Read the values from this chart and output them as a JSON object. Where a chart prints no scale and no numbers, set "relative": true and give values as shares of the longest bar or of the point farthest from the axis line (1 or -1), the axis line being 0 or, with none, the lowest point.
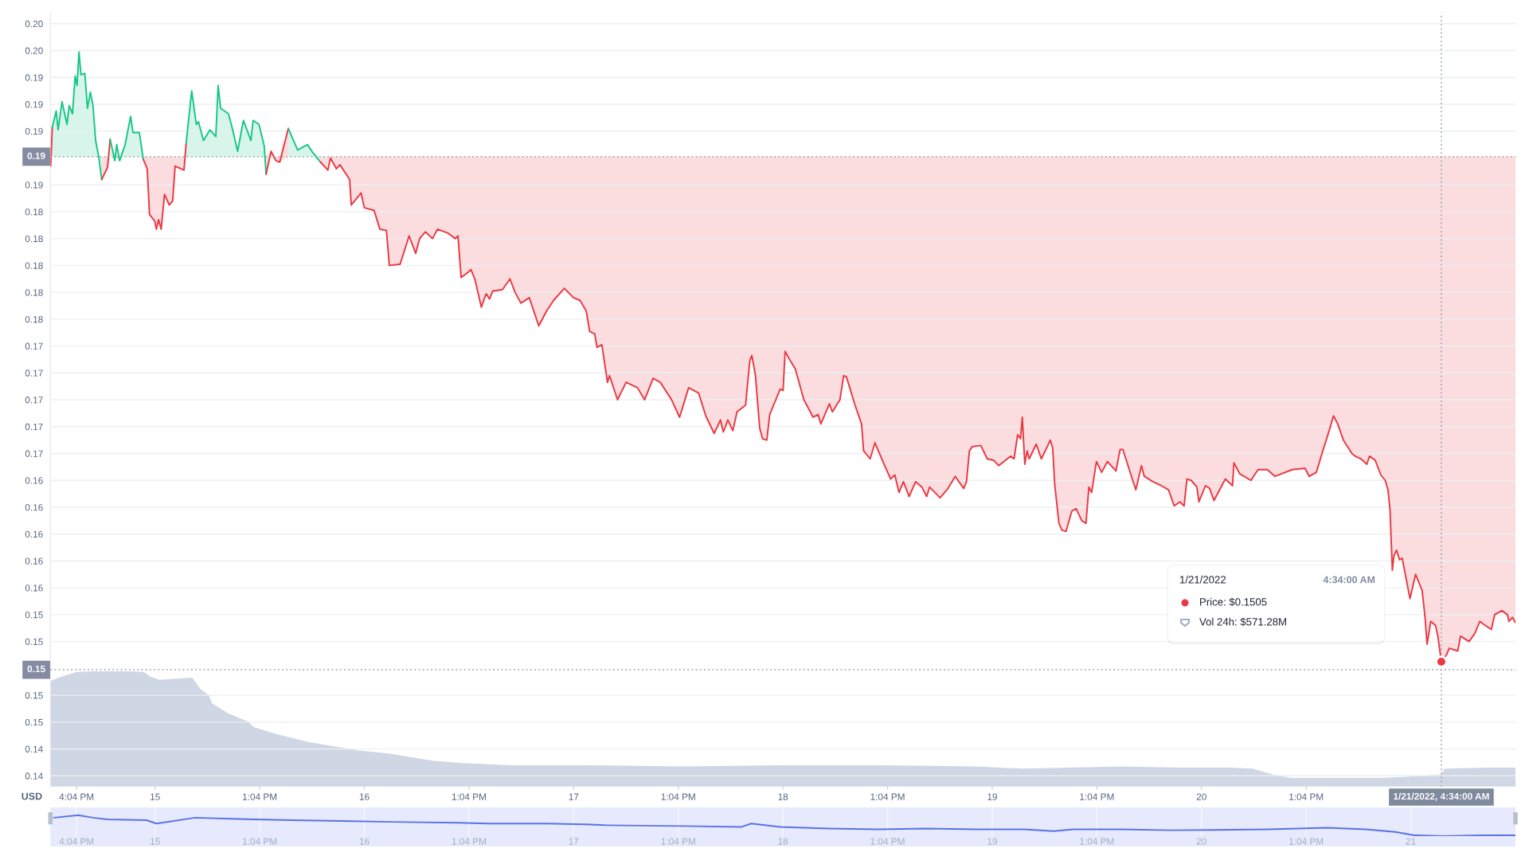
{
  "chart_data": [
    {
      "type": "line",
      "series": [
        {
          "color": "#ea3943",
          "x": [
            "2022-01-14T13:06",
            "2022-01-14T13:17"
          ],
          "values": [
            0.1874,
            0.1903
          ],
          "lower": [
            0.1874,
            0.1881
          ],
          "upper": [
            0.1881,
            0.1903
          ]
        },
        {
          "color": "#16c784",
          "x": [
            "2022-01-14T13:17",
            "2022-01-14T13:44",
            "2022-01-14T13:57",
            "2022-01-14T14:24",
            "2022-01-14T14:58",
            "2022-01-14T15:13",
            "2022-01-14T15:36",
            "2022-01-14T15:54",
            "2022-01-14T16:07",
            "2022-01-14T16:21",
            "2022-01-14T16:34",
            "2022-01-14T17:01",
            "2022-01-14T17:19",
            "2022-01-14T17:39",
            "2022-01-14T17:57",
            "2022-01-14T18:15",
            "2022-01-14T18:35",
            "2022-01-14T18:57"
          ],
          "values": [
            0.1903,
            0.1915,
            0.1901,
            0.1922,
            0.1905,
            0.1919,
            0.1913,
            0.1941,
            0.1934,
            0.1959,
            0.1942,
            0.1943,
            0.1917,
            0.1929,
            0.1919,
            0.1893,
            0.1882,
            0.1864
          ],
          "lower": [
            0.1881,
            0.1881,
            0.1881,
            0.1881,
            0.1881,
            0.1881,
            0.1881,
            0.1881,
            0.1881,
            0.1881,
            0.1881,
            0.1881,
            0.1881,
            0.1881,
            0.1881,
            0.1881,
            0.1881,
            0.1864
          ],
          "upper": [
            0.1903,
            0.1915,
            0.1901,
            0.1922,
            0.1905,
            0.1919,
            0.1913,
            0.1941,
            0.1934,
            0.1959,
            0.1942,
            0.1943,
            0.1917,
            0.1929,
            0.1919,
            0.1893,
            0.1882,
            0.1881
          ]
        },
        {
          "color": "#ea3943",
          "x": [
            "2022-01-14T18:57",
            "2022-01-14T19:37",
            "2022-01-14T19:55"
          ],
          "values": [
            0.1864,
            0.1873,
            0.1894
          ],
          "lower": [
            0.1864,
            0.1873,
            0.1881
          ],
          "upper": [
            0.1881,
            0.1881,
            0.1894
          ]
        },
        {
          "color": "#16c784",
          "x": [
            "2022-01-14T19:55",
            "2022-01-14T20:27",
            "2022-01-14T20:40",
            "2022-01-14T21:00",
            "2022-01-14T21:38",
            "2022-01-14T22:16",
            "2022-01-14T22:32",
            "2022-01-14T23:16",
            "2022-01-14T23:43"
          ],
          "values": [
            0.1894,
            0.1878,
            0.189,
            0.1878,
            0.189,
            0.1911,
            0.1899,
            0.1899,
            0.1879
          ],
          "lower": [
            0.1881,
            0.1878,
            0.1881,
            0.1878,
            0.1881,
            0.1881,
            0.1881,
            0.1881,
            0.1879
          ],
          "upper": [
            0.1894,
            0.1881,
            0.189,
            0.1881,
            0.189,
            0.1911,
            0.1899,
            0.1899,
            0.1881
          ]
        },
        {
          "color": "#ea3943",
          "x": [
            "2022-01-14T23:43",
            "2022-01-15T00:10",
            "2022-01-15T00:26",
            "2022-01-15T01:02",
            "2022-01-15T01:13",
            "2022-01-15T01:28",
            "2022-01-15T01:46",
            "2022-01-15T02:09",
            "2022-01-15T02:42",
            "2022-01-15T03:05",
            "2022-01-15T03:22",
            "2022-01-15T04:23",
            "2022-01-15T04:38"
          ],
          "values": [
            0.1879,
            0.1872,
            0.1838,
            0.1833,
            0.1827,
            0.1834,
            0.1827,
            0.1853,
            0.1845,
            0.1848,
            0.1874,
            0.1871,
            0.1891
          ],
          "lower": [
            0.1879,
            0.1872,
            0.1838,
            0.1833,
            0.1827,
            0.1834,
            0.1827,
            0.1853,
            0.1845,
            0.1848,
            0.1874,
            0.1871,
            0.1881
          ],
          "upper": [
            0.1881,
            0.1881,
            0.1881,
            0.1881,
            0.1881,
            0.1881,
            0.1881,
            0.1881,
            0.1881,
            0.1881,
            0.1881,
            0.1881,
            0.1891
          ]
        },
        {
          "color": "#16c784",
          "x": [
            "2022-01-15T04:38",
            "2022-01-15T05:16",
            "2022-01-15T05:48",
            "2022-01-15T06:03",
            "2022-01-15T06:37",
            "2022-01-15T07:22",
            "2022-01-15T08:02",
            "2022-01-15T08:18",
            "2022-01-15T08:35",
            "2022-01-15T09:29",
            "2022-01-15T09:58",
            "2022-01-15T10:32",
            "2022-01-15T11:12",
            "2022-01-15T11:43",
            "2022-01-15T12:03",
            "2022-01-15T12:19",
            "2022-01-15T12:59",
            "2022-01-15T13:35",
            "2022-01-15T13:48"
          ],
          "values": [
            0.1891,
            0.193,
            0.1905,
            0.1907,
            0.1893,
            0.1901,
            0.1896,
            0.1934,
            0.1917,
            0.1913,
            0.1901,
            0.1885,
            0.1908,
            0.1899,
            0.1893,
            0.1908,
            0.1905,
            0.1889,
            0.1868
          ],
          "lower": [
            0.1881,
            0.1881,
            0.1881,
            0.1881,
            0.1881,
            0.1881,
            0.1881,
            0.1881,
            0.1881,
            0.1881,
            0.1881,
            0.1881,
            0.1881,
            0.1881,
            0.1881,
            0.1881,
            0.1881,
            0.1881,
            0.1868
          ],
          "upper": [
            0.1891,
            0.193,
            0.1905,
            0.1907,
            0.1893,
            0.1901,
            0.1896,
            0.1934,
            0.1917,
            0.1913,
            0.1901,
            0.1885,
            0.1908,
            0.1899,
            0.1893,
            0.1908,
            0.1905,
            0.1889,
            0.1881
          ]
        },
        {
          "color": "#ea3943",
          "x": [
            "2022-01-15T13:48",
            "2022-01-15T14:22",
            "2022-01-15T14:56",
            "2022-01-15T15:22",
            "2022-01-15T16:21"
          ],
          "values": [
            0.1868,
            0.1885,
            0.1878,
            0.1877,
            0.1902
          ],
          "lower": [
            0.1868,
            0.1881,
            0.1878,
            0.1877,
            0.1881
          ],
          "upper": [
            0.1881,
            0.1885,
            0.1881,
            0.1881,
            0.1902
          ]
        },
        {
          "color": "#16c784",
          "x": [
            "2022-01-15T16:21",
            "2022-01-15T17:25",
            "2022-01-15T18:32",
            "2022-01-15T19:10",
            "2022-01-15T20:02"
          ],
          "values": [
            0.1902,
            0.1886,
            0.189,
            0.1884,
            0.1877
          ],
          "lower": [
            0.1881,
            0.1881,
            0.1881,
            0.1881,
            0.1877
          ],
          "upper": [
            0.1902,
            0.1886,
            0.189,
            0.1884,
            0.1881
          ]
        },
        {
          "color": "#ea3943",
          "x": [
            "2022-01-15T20:02",
            "2022-01-15T20:53",
            "2022-01-15T21:11",
            "2022-01-15T21:52",
            "2022-01-15T22:16",
            "2022-01-15T23:23",
            "2022-01-15T23:34",
            "2022-01-16T00:19",
            "2022-01-16T00:41",
            "2022-01-16T01:04",
            "2022-01-16T02:11",
            "2022-01-16T02:51",
            "2022-01-16T03:36",
            "2022-01-16T03:56",
            "2022-01-16T05:10",
            "2022-01-16T06:12",
            "2022-01-16T06:57",
            "2022-01-16T07:24",
            "2022-01-16T08:04",
            "2022-01-16T08:53",
            "2022-01-16T09:27",
            "2022-01-16T10:41",
            "2022-01-16T11:30",
            "2022-01-16T11:48",
            "2022-01-16T12:10",
            "2022-01-16T12:59",
            "2022-01-16T13:17",
            "2022-01-16T13:44",
            "2022-01-16T14:29",
            "2022-01-16T15:02",
            "2022-01-16T15:25",
            "2022-01-16T15:47",
            "2022-01-16T16:54",
            "2022-01-16T17:46",
            "2022-01-16T18:21",
            "2022-01-16T19:01",
            "2022-01-16T19:59",
            "2022-01-16T21:04",
            "2022-01-16T21:57",
            "2022-01-16T22:46",
            "2022-01-17T00:00",
            "2022-01-17T01:03",
            "2022-01-17T01:48",
            "2022-01-17T02:31",
            "2022-01-17T02:54",
            "2022-01-17T03:29",
            "2022-01-17T03:45",
            "2022-01-17T04:18",
            "2022-01-17T04:57",
            "2022-01-17T05:11",
            "2022-01-17T06:06",
            "2022-01-17T07:05",
            "2022-01-17T08:23",
            "2022-01-17T09:12",
            "2022-01-17T10:11",
            "2022-01-17T11:00",
            "2022-01-17T12:18",
            "2022-01-17T13:13",
            "2022-01-17T14:15",
            "2022-01-17T15:24",
            "2022-01-17T16:13",
            "2022-01-17T17:11",
            "2022-01-17T17:54",
            "2022-01-17T18:14",
            "2022-01-17T18:45",
            "2022-01-17T19:19",
            "2022-01-17T19:48",
            "2022-01-17T20:47",
            "2022-01-17T21:16",
            "2022-01-17T21:30",
            "2022-01-17T21:55",
            "2022-01-17T22:24",
            "2022-01-17T22:44",
            "2022-01-17T23:13",
            "2022-01-17T23:33",
            "2022-01-18T00:45",
            "2022-01-18T01:05",
            "2022-01-18T01:19",
            "2022-01-18T01:44",
            "2022-01-18T02:29",
            "2022-01-18T03:28",
            "2022-01-18T04:32",
            "2022-01-18T05:06",
            "2022-01-18T05:25",
            "2022-01-18T06:24",
            "2022-01-18T06:44",
            "2022-01-18T07:36",
            "2022-01-18T08:02",
            "2022-01-18T08:21",
            "2022-01-18T09:20",
            "2022-01-18T10:05",
            "2022-01-18T10:19",
            "2022-01-18T11:04",
            "2022-01-18T11:37",
            "2022-01-18T12:36",
            "2022-01-18T13:25",
            "2022-01-18T13:54",
            "2022-01-18T14:23",
            "2022-01-18T14:53",
            "2022-01-18T15:32",
            "2022-01-18T16:17",
            "2022-01-18T17:00",
            "2022-01-18T17:33",
            "2022-01-18T17:53",
            "2022-01-18T19:05",
            "2022-01-18T20:00",
            "2022-01-18T20:49",
            "2022-01-18T21:48",
            "2022-01-18T22:07",
            "2022-01-18T22:27",
            "2022-01-18T22:46",
            "2022-01-18T23:45",
            "2022-01-19T00:30",
            "2022-01-19T01:13",
            "2022-01-19T01:48",
            "2022-01-19T03:10",
            "2022-01-19T03:34",
            "2022-01-19T03:59",
            "2022-01-19T04:19",
            "2022-01-19T04:31",
            "2022-01-19T04:48",
            "2022-01-19T05:04",
            "2022-01-19T05:18",
            "2022-01-19T06:07",
            "2022-01-19T06:42",
            "2022-01-19T07:44",
            "2022-01-19T08:00",
            "2022-01-19T08:14",
            "2022-01-19T08:43",
            "2022-01-19T09:03",
            "2022-01-19T09:32",
            "2022-01-19T10:11",
            "2022-01-19T10:41",
            "2022-01-19T11:20",
            "2022-01-19T11:49",
            "2022-01-19T12:09",
            "2022-01-19T12:28",
            "2022-01-19T13:01",
            "2022-01-19T13:37",
            "2022-01-19T14:16",
            "2022-01-19T15:15",
            "2022-01-19T15:44",
            "2022-01-19T16:03",
            "2022-01-19T17:02",
            "2022-01-19T17:32",
            "2022-01-19T18:11",
            "2022-01-19T18:30",
            "2022-01-19T19:29",
            "2022-01-19T20:28",
            "2022-01-19T21:17",
            "2022-01-19T21:56",
            "2022-01-19T22:35",
            "2022-01-19T23:04",
            "2022-01-19T23:24",
            "2022-01-19T23:53",
            "2022-01-20T00:32",
            "2022-01-20T00:46",
            "2022-01-20T01:31",
            "2022-01-20T02:00",
            "2022-01-20T02:30",
            "2022-01-20T03:48",
            "2022-01-20T04:37",
            "2022-01-20T04:47",
            "2022-01-20T05:26",
            "2022-01-20T06:44",
            "2022-01-20T07:33",
            "2022-01-20T08:36",
            "2022-01-20T09:30",
            "2022-01-20T11:28",
            "2022-01-20T12:56",
            "2022-01-20T13:25",
            "2022-01-20T14:14",
            "2022-01-20T14:53",
            "2022-01-20T15:42",
            "2022-01-20T16:12",
            "2022-01-20T16:41",
            "2022-01-20T17:20",
            "2022-01-20T18:19",
            "2022-01-20T18:42",
            "2022-01-20T19:21",
            "2022-01-20T20:01",
            "2022-01-20T20:20",
            "2022-01-20T20:59",
            "2022-01-20T21:38",
            "2022-01-20T22:08",
            "2022-01-20T22:27",
            "2022-01-20T22:41",
            "2022-01-20T22:57",
            "2022-01-20T23:08",
            "2022-01-20T23:26",
            "2022-01-20T23:46",
            "2022-01-21T00:05",
            "2022-01-21T00:58",
            "2022-01-21T01:37",
            "2022-01-21T02:22",
            "2022-01-21T02:42",
            "2022-01-21T02:56",
            "2022-01-21T03:21",
            "2022-01-21T03:54",
            "2022-01-21T04:10",
            "2022-01-21T04:34",
            "2022-01-21T05:09",
            "2022-01-21T05:28",
            "2022-01-21T06:27",
            "2022-01-21T06:46",
            "2022-01-21T07:45",
            "2022-01-21T08:24",
            "2022-01-21T08:59",
            "2022-01-21T09:23",
            "2022-01-21T10:18",
            "2022-01-21T10:41",
            "2022-01-21T11:30",
            "2022-01-21T12:09",
            "2022-01-21T12:19",
            "2022-01-21T12:43",
            "2022-01-21T13:04"
          ],
          "values": [
            0.1877,
            0.1871,
            0.188,
            0.1872,
            0.1875,
            0.1864,
            0.1845,
            0.1851,
            0.1854,
            0.1843,
            0.1841,
            0.1827,
            0.1826,
            0.18,
            0.1801,
            0.1822,
            0.1809,
            0.182,
            0.1825,
            0.182,
            0.1827,
            0.1824,
            0.182,
            0.1822,
            0.1791,
            0.1795,
            0.1797,
            0.179,
            0.1769,
            0.1779,
            0.1775,
            0.1781,
            0.1782,
            0.179,
            0.178,
            0.1772,
            0.1776,
            0.1755,
            0.1766,
            0.1774,
            0.1783,
            0.1776,
            0.1774,
            0.1766,
            0.1751,
            0.1749,
            0.1739,
            0.1741,
            0.1713,
            0.1718,
            0.17,
            0.1713,
            0.1709,
            0.17,
            0.1716,
            0.1713,
            0.17,
            0.1687,
            0.1709,
            0.1705,
            0.1688,
            0.1675,
            0.1685,
            0.1676,
            0.1685,
            0.1677,
            0.1691,
            0.1696,
            0.1729,
            0.1733,
            0.1718,
            0.1679,
            0.1671,
            0.167,
            0.1689,
            0.1708,
            0.1707,
            0.1736,
            0.1731,
            0.1723,
            0.17,
            0.1687,
            0.1689,
            0.1682,
            0.1697,
            0.1691,
            0.17,
            0.1718,
            0.1717,
            0.1696,
            0.1682,
            0.1662,
            0.1656,
            0.1668,
            0.1653,
            0.1641,
            0.1644,
            0.1631,
            0.1639,
            0.1628,
            0.1639,
            0.1635,
            0.1628,
            0.1635,
            0.1627,
            0.1634,
            0.1643,
            0.1634,
            0.1639,
            0.1662,
            0.1665,
            0.1666,
            0.1656,
            0.1655,
            0.1651,
            0.1658,
            0.1656,
            0.1674,
            0.1671,
            0.1687,
            0.1652,
            0.1662,
            0.1656,
            0.1667,
            0.1656,
            0.167,
            0.1664,
            0.1637,
            0.1608,
            0.1603,
            0.1602,
            0.1617,
            0.1619,
            0.161,
            0.1608,
            0.1635,
            0.1631,
            0.1654,
            0.1646,
            0.1654,
            0.1647,
            0.1663,
            0.1663,
            0.1643,
            0.1633,
            0.1651,
            0.1643,
            0.1639,
            0.1636,
            0.1633,
            0.1621,
            0.1624,
            0.1621,
            0.1641,
            0.164,
            0.1635,
            0.1624,
            0.1636,
            0.1634,
            0.1625,
            0.1641,
            0.1636,
            0.1653,
            0.1645,
            0.164,
            0.1648,
            0.1648,
            0.1643,
            0.1648,
            0.1649,
            0.1643,
            0.1646,
            0.166,
            0.1677,
            0.1688,
            0.1682,
            0.167,
            0.166,
            0.1658,
            0.1656,
            0.1652,
            0.1658,
            0.1655,
            0.1644,
            0.164,
            0.1633,
            0.1618,
            0.1573,
            0.1584,
            0.1588,
            0.1581,
            0.1582,
            0.1552,
            0.157,
            0.1558,
            0.1538,
            0.1518,
            0.1535,
            0.1532,
            0.1524,
            0.1505,
            0.151,
            0.1515,
            0.1513,
            0.1524,
            0.152,
            0.1526,
            0.1535,
            0.1533,
            0.1529,
            0.154,
            0.1543,
            0.154,
            0.1535,
            0.1538,
            0.1534
          ],
          "lower": [
            0.1877,
            0.1871,
            0.188,
            0.1872,
            0.1875,
            0.1864,
            0.1845,
            0.1851,
            0.1854,
            0.1843,
            0.1841,
            0.1827,
            0.1826,
            0.18,
            0.1801,
            0.1822,
            0.1809,
            0.182,
            0.1825,
            0.182,
            0.1827,
            0.1824,
            0.182,
            0.1822,
            0.1791,
            0.1795,
            0.1797,
            0.179,
            0.1769,
            0.1779,
            0.1775,
            0.1781,
            0.1782,
            0.179,
            0.178,
            0.1772,
            0.1776,
            0.1755,
            0.1766,
            0.1774,
            0.1783,
            0.1776,
            0.1774,
            0.1766,
            0.1751,
            0.1749,
            0.1739,
            0.1741,
            0.1713,
            0.1718,
            0.17,
            0.1713,
            0.1709,
            0.17,
            0.1716,
            0.1713,
            0.17,
            0.1687,
            0.1709,
            0.1705,
            0.1688,
            0.1675,
            0.1685,
            0.1676,
            0.1685,
            0.1677,
            0.1691,
            0.1696,
            0.1729,
            0.1733,
            0.1718,
            0.1679,
            0.1671,
            0.167,
            0.1689,
            0.1708,
            0.1707,
            0.1736,
            0.1731,
            0.1723,
            0.17,
            0.1687,
            0.1689,
            0.1682,
            0.1697,
            0.1691,
            0.17,
            0.1718,
            0.1717,
            0.1696,
            0.1682,
            0.1662,
            0.1656,
            0.1668,
            0.1653,
            0.1641,
            0.1644,
            0.1631,
            0.1639,
            0.1628,
            0.1639,
            0.1635,
            0.1628,
            0.1635,
            0.1627,
            0.1634,
            0.1643,
            0.1634,
            0.1639,
            0.1662,
            0.1665,
            0.1666,
            0.1656,
            0.1655,
            0.1651,
            0.1658,
            0.1656,
            0.1674,
            0.1671,
            0.1687,
            0.1652,
            0.1662,
            0.1656,
            0.1667,
            0.1656,
            0.167,
            0.1664,
            0.1637,
            0.1608,
            0.1603,
            0.1602,
            0.1617,
            0.1619,
            0.161,
            0.1608,
            0.1635,
            0.1631,
            0.1654,
            0.1646,
            0.1654,
            0.1647,
            0.1663,
            0.1663,
            0.1643,
            0.1633,
            0.1651,
            0.1643,
            0.1639,
            0.1636,
            0.1633,
            0.1621,
            0.1624,
            0.1621,
            0.1641,
            0.164,
            0.1635,
            0.1624,
            0.1636,
            0.1634,
            0.1625,
            0.1641,
            0.1636,
            0.1653,
            0.1645,
            0.164,
            0.1648,
            0.1648,
            0.1643,
            0.1648,
            0.1649,
            0.1643,
            0.1646,
            0.166,
            0.1677,
            0.1688,
            0.1682,
            0.167,
            0.166,
            0.1658,
            0.1656,
            0.1652,
            0.1658,
            0.1655,
            0.1644,
            0.164,
            0.1633,
            0.1618,
            0.1573,
            0.1584,
            0.1588,
            0.1581,
            0.1582,
            0.1552,
            0.157,
            0.1558,
            0.1538,
            0.1518,
            0.1535,
            0.1532,
            0.1524,
            0.1505,
            0.151,
            0.1515,
            0.1513,
            0.1524,
            0.152,
            0.1526,
            0.1535,
            0.1533,
            0.1529,
            0.154,
            0.1543,
            0.154,
            0.1535,
            0.1538,
            0.1534
          ],
          "upper": [
            0.1881,
            0.1881,
            0.1881,
            0.1881,
            0.1881,
            0.1881,
            0.1881,
            0.1881,
            0.1881,
            0.1881,
            0.1881,
            0.1881,
            0.1881,
            0.1881,
            0.1881,
            0.1881,
            0.1881,
            0.1881,
            0.1881,
            0.1881,
            0.1881,
            0.1881,
            0.1881,
            0.1881,
            0.1881,
            0.1881,
            0.1881,
            0.1881,
            0.1881,
            0.1881,
            0.1881,
            0.1881,
            0.1881,
            0.1881,
            0.1881,
            0.1881,
            0.1881,
            0.1881,
            0.1881,
            0.1881,
            0.1881,
            0.1881,
            0.1881,
            0.1881,
            0.1881,
            0.1881,
            0.1881,
            0.1881,
            0.1881,
            0.1881,
            0.1881,
            0.1881,
            0.1881,
            0.1881,
            0.1881,
            0.1881,
            0.1881,
            0.1881,
            0.1881,
            0.1881,
            0.1881,
            0.1881,
            0.1881,
            0.1881,
            0.1881,
            0.1881,
            0.1881,
            0.1881,
            0.1881,
            0.1881,
            0.1881,
            0.1881,
            0.1881,
            0.1881,
            0.1881,
            0.1881,
            0.1881,
            0.1881,
            0.1881,
            0.1881,
            0.1881,
            0.1881,
            0.1881,
            0.1881,
            0.1881,
            0.1881,
            0.1881,
            0.1881,
            0.1881,
            0.1881,
            0.1881,
            0.1881,
            0.1881,
            0.1881,
            0.1881,
            0.1881,
            0.1881,
            0.1881,
            0.1881,
            0.1881,
            0.1881,
            0.1881,
            0.1881,
            0.1881,
            0.1881,
            0.1881,
            0.1881,
            0.1881,
            0.1881,
            0.1881,
            0.1881,
            0.1881,
            0.1881,
            0.1881,
            0.1881,
            0.1881,
            0.1881,
            0.1881,
            0.1881,
            0.1881,
            0.1881,
            0.1881,
            0.1881,
            0.1881,
            0.1881,
            0.1881,
            0.1881,
            0.1881,
            0.1881,
            0.1881,
            0.1881,
            0.1881,
            0.1881,
            0.1881,
            0.1881,
            0.1881,
            0.1881,
            0.1881,
            0.1881,
            0.1881,
            0.1881,
            0.1881,
            0.1881,
            0.1881,
            0.1881,
            0.1881,
            0.1881,
            0.1881,
            0.1881,
            0.1881,
            0.1881,
            0.1881,
            0.1881,
            0.1881,
            0.1881,
            0.1881,
            0.1881,
            0.1881,
            0.1881,
            0.1881,
            0.1881,
            0.1881,
            0.1881,
            0.1881,
            0.1881,
            0.1881,
            0.1881,
            0.1881,
            0.1881,
            0.1881,
            0.1881,
            0.1881,
            0.1881,
            0.1881,
            0.1881,
            0.1881,
            0.1881,
            0.1881,
            0.1881,
            0.1881,
            0.1881,
            0.1881,
            0.1881,
            0.1881,
            0.1881,
            0.1881,
            0.1881,
            0.1881,
            0.1881,
            0.1881,
            0.1881,
            0.1881,
            0.1881,
            0.1881,
            0.1881,
            0.1881,
            0.1881,
            0.1881,
            0.1881,
            0.1881,
            0.1881,
            0.1881,
            0.1881,
            0.1881,
            0.1881,
            0.1881,
            0.1881,
            0.1881,
            0.1881,
            0.1881,
            0.1881,
            0.1881,
            0.1881,
            0.1881,
            0.1881,
            0.1881
          ]
        },
        {
          "type": "scatter",
          "color": "#ea3943",
          "x": [
            "2022-01-21T04:34"
          ],
          "values": [
            0.1505
          ]
        }
      ],
      "xlim": [
        "2022-01-14T13:04",
        "2022-01-21T13:04"
      ],
      "ylim": [
        0.1412,
        0.1988
      ],
      "xticks": [
        {
          "value": "2022-01-14T16:04",
          "label": "4:04 PM"
        },
        {
          "value": "2022-01-15T01:04",
          "label": "15"
        },
        {
          "value": "2022-01-15T13:04",
          "label": "1:04 PM"
        },
        {
          "value": "2022-01-16T01:04",
          "label": "16"
        },
        {
          "value": "2022-01-16T13:04",
          "label": "1:04 PM"
        },
        {
          "value": "2022-01-17T01:04",
          "label": "17"
        },
        {
          "value": "2022-01-17T13:04",
          "label": "1:04 PM"
        },
        {
          "value": "2022-01-18T01:04",
          "label": "18"
        },
        {
          "value": "2022-01-18T13:04",
          "label": "1:04 PM"
        },
        {
          "value": "2022-01-19T01:04",
          "label": "19"
        },
        {
          "value": "2022-01-19T13:04",
          "label": "1:04 PM"
        },
        {
          "value": "2022-01-20T01:04",
          "label": "20"
        },
        {
          "value": "2022-01-20T13:04",
          "label": "1:04 PM"
        }
      ],
      "yticks": [
        {
          "value": 0.198,
          "label": "0.20"
        },
        {
          "value": 0.196,
          "label": "0.20"
        },
        {
          "value": 0.194,
          "label": "0.19"
        },
        {
          "value": 0.192,
          "label": "0.19"
        },
        {
          "value": 0.19,
          "label": "0.19"
        },
        {
          "value": 0.186,
          "label": "0.19"
        },
        {
          "value": 0.184,
          "label": "0.18"
        },
        {
          "value": 0.182,
          "label": "0.18"
        },
        {
          "value": 0.18,
          "label": "0.18"
        },
        {
          "value": 0.178,
          "label": "0.18"
        },
        {
          "value": 0.176,
          "label": "0.18"
        },
        {
          "value": 0.174,
          "label": "0.17"
        },
        {
          "value": 0.172,
          "label": "0.17"
        },
        {
          "value": 0.17,
          "label": "0.17"
        },
        {
          "value": 0.168,
          "label": "0.17"
        },
        {
          "value": 0.166,
          "label": "0.17"
        },
        {
          "value": 0.164,
          "label": "0.16"
        },
        {
          "value": 0.162,
          "label": "0.16"
        },
        {
          "value": 0.16,
          "label": "0.16"
        },
        {
          "value": 0.158,
          "label": "0.16"
        },
        {
          "value": 0.156,
          "label": "0.16"
        },
        {
          "value": 0.154,
          "label": "0.15"
        },
        {
          "value": 0.152,
          "label": "0.15"
        },
        {
          "value": 0.148,
          "label": "0.15"
        },
        {
          "value": 0.146,
          "label": "0.15"
        },
        {
          "value": 0.144,
          "label": "0.14"
        },
        {
          "value": 0.142,
          "label": "0.14"
        }
      ],
      "grid": "y",
      "ylabel": "USD",
      "ref_lines": [
        {
          "axis": "y",
          "value": 0.1881,
          "label": "0.19",
          "line_style": "dotted",
          "color": "#9aa1b1"
        },
        {
          "axis": "y",
          "value": 0.1499,
          "label": "0.15",
          "line_style": "dotted",
          "color": "#9aa1b1"
        },
        {
          "axis": "x",
          "value": "2022-01-21T04:34",
          "label": "1/21/2022, 4:34:00 AM",
          "line_style": "dotted",
          "color": "#9aa1b1"
        }
      ],
      "annotations": [
        "1/21/2022",
        "4:34:00 AM",
        "Price: $0.1505",
        "Vol 24h: $571.28M"
      ]
    },
    {
      "type": "area",
      "relative": true,
      "color": "#cfd6e4",
      "x": [
        "2022-01-14T13:06",
        "2022-01-14T14:02",
        "2022-01-14T16:05",
        "2022-01-14T20:22",
        "2022-01-14T23:43",
        "2022-01-15T00:28",
        "2022-01-15T01:35",
        "2022-01-15T05:18",
        "2022-01-15T06:15",
        "2022-01-15T07:10",
        "2022-01-15T07:33",
        "2022-01-15T09:25",
        "2022-01-15T11:39",
        "2022-01-15T12:24",
        "2022-01-15T15:00",
        "2022-01-15T18:44",
        "2022-01-16T00:19",
        "2022-01-16T04:03",
        "2022-01-16T08:54",
        "2022-01-16T12:15",
        "2022-01-16T17:46",
        "2022-01-17T02:25",
        "2022-01-17T13:36",
        "2022-01-18T00:47",
        "2022-01-18T11:58",
        "2022-01-18T23:10",
        "2022-01-19T04:45",
        "2022-01-19T15:56",
        "2022-01-19T22:29",
        "2022-01-20T04:21",
        "2022-01-20T06:58",
        "2022-01-20T09:15",
        "2022-01-20T11:22",
        "2022-01-20T16:25",
        "2022-01-20T21:19",
        "2022-01-21T00:35",
        "2022-01-21T04:29",
        "2022-01-21T04:59",
        "2022-01-21T09:58",
        "2022-01-21T13:04"
      ],
      "values": [
        0.91,
        0.94,
        0.99,
        1,
        0.99,
        0.95,
        0.92,
        0.94,
        0.84,
        0.79,
        0.72,
        0.63,
        0.56,
        0.51,
        0.45,
        0.38,
        0.31,
        0.28,
        0.22,
        0.2,
        0.18,
        0.18,
        0.17,
        0.18,
        0.18,
        0.17,
        0.15,
        0.17,
        0.16,
        0.16,
        0.15,
        0.1,
        0.07,
        0.07,
        0.07,
        0.08,
        0.1,
        0.15,
        0.16,
        0.16
      ],
      "xlim": [
        "2022-01-14T13:04",
        "2022-01-21T13:04"
      ],
      "tick_labels": false
    },
    {
      "type": "line",
      "relative": true,
      "color": "#5a72e6",
      "x": [
        "2022-01-14T13:28",
        "2022-01-14T16:16",
        "2022-01-14T17:57",
        "2022-01-14T19:37",
        "2022-01-15T00:06",
        "2022-01-15T01:13",
        "2022-01-15T05:41",
        "2022-01-15T09:03",
        "2022-01-15T12:24",
        "2022-01-15T16:53",
        "2022-01-15T22:28",
        "2022-01-16T04:04",
        "2022-01-16T11:53",
        "2022-01-16T15:15",
        "2022-01-16T21:57",
        "2022-01-17T02:25",
        "2022-01-17T04:40",
        "2022-01-17T13:36",
        "2022-01-17T20:19",
        "2022-01-17T21:26",
        "2022-01-18T00:47",
        "2022-01-18T06:23",
        "2022-01-18T11:58",
        "2022-01-18T17:34",
        "2022-01-18T23:10",
        "2022-01-19T04:45",
        "2022-01-19T08:06",
        "2022-01-19T10:21",
        "2022-01-19T15:56",
        "2022-01-19T21:32",
        "2022-01-20T08:43",
        "2022-01-20T15:26",
        "2022-01-20T19:54",
        "2022-01-20T23:16",
        "2022-01-21T01:30",
        "2022-01-21T04:51",
        "2022-01-21T09:20",
        "2022-01-21T13:04"
      ],
      "values": [
        0.88,
        1,
        0.88,
        0.8,
        0.76,
        0.6,
        0.88,
        0.84,
        0.8,
        0.76,
        0.72,
        0.68,
        0.64,
        0.6,
        0.6,
        0.56,
        0.52,
        0.48,
        0.44,
        0.6,
        0.44,
        0.36,
        0.32,
        0.36,
        0.32,
        0.32,
        0.24,
        0.32,
        0.32,
        0.28,
        0.32,
        0.4,
        0.32,
        0.2,
        0.04,
        0,
        0.04,
        0.04
      ],
      "xlim": [
        "2022-01-14T13:04",
        "2022-01-21T13:04"
      ],
      "xticks": [
        {
          "value": "2022-01-14T16:04",
          "label": "4:04 PM"
        },
        {
          "value": "2022-01-15T01:04",
          "label": "15"
        },
        {
          "value": "2022-01-15T13:04",
          "label": "1:04 PM"
        },
        {
          "value": "2022-01-16T01:04",
          "label": "16"
        },
        {
          "value": "2022-01-16T13:04",
          "label": "1:04 PM"
        },
        {
          "value": "2022-01-17T01:04",
          "label": "17"
        },
        {
          "value": "2022-01-17T13:04",
          "label": "1:04 PM"
        },
        {
          "value": "2022-01-18T01:04",
          "label": "18"
        },
        {
          "value": "2022-01-18T13:04",
          "label": "1:04 PM"
        },
        {
          "value": "2022-01-19T01:04",
          "label": "19"
        },
        {
          "value": "2022-01-19T13:04",
          "label": "1:04 PM"
        },
        {
          "value": "2022-01-20T01:04",
          "label": "20"
        },
        {
          "value": "2022-01-20T13:04",
          "label": "1:04 PM"
        },
        {
          "value": "2022-01-21T01:04",
          "label": "21"
        }
      ],
      "grid": "x",
      "tick_labels": "x",
      "bands": [
        {
          "axis": "x",
          "from": "2022-01-14T13:04",
          "to": "2022-01-21T13:04",
          "color": "#e6eafc"
        }
      ]
    }
  ]
}
